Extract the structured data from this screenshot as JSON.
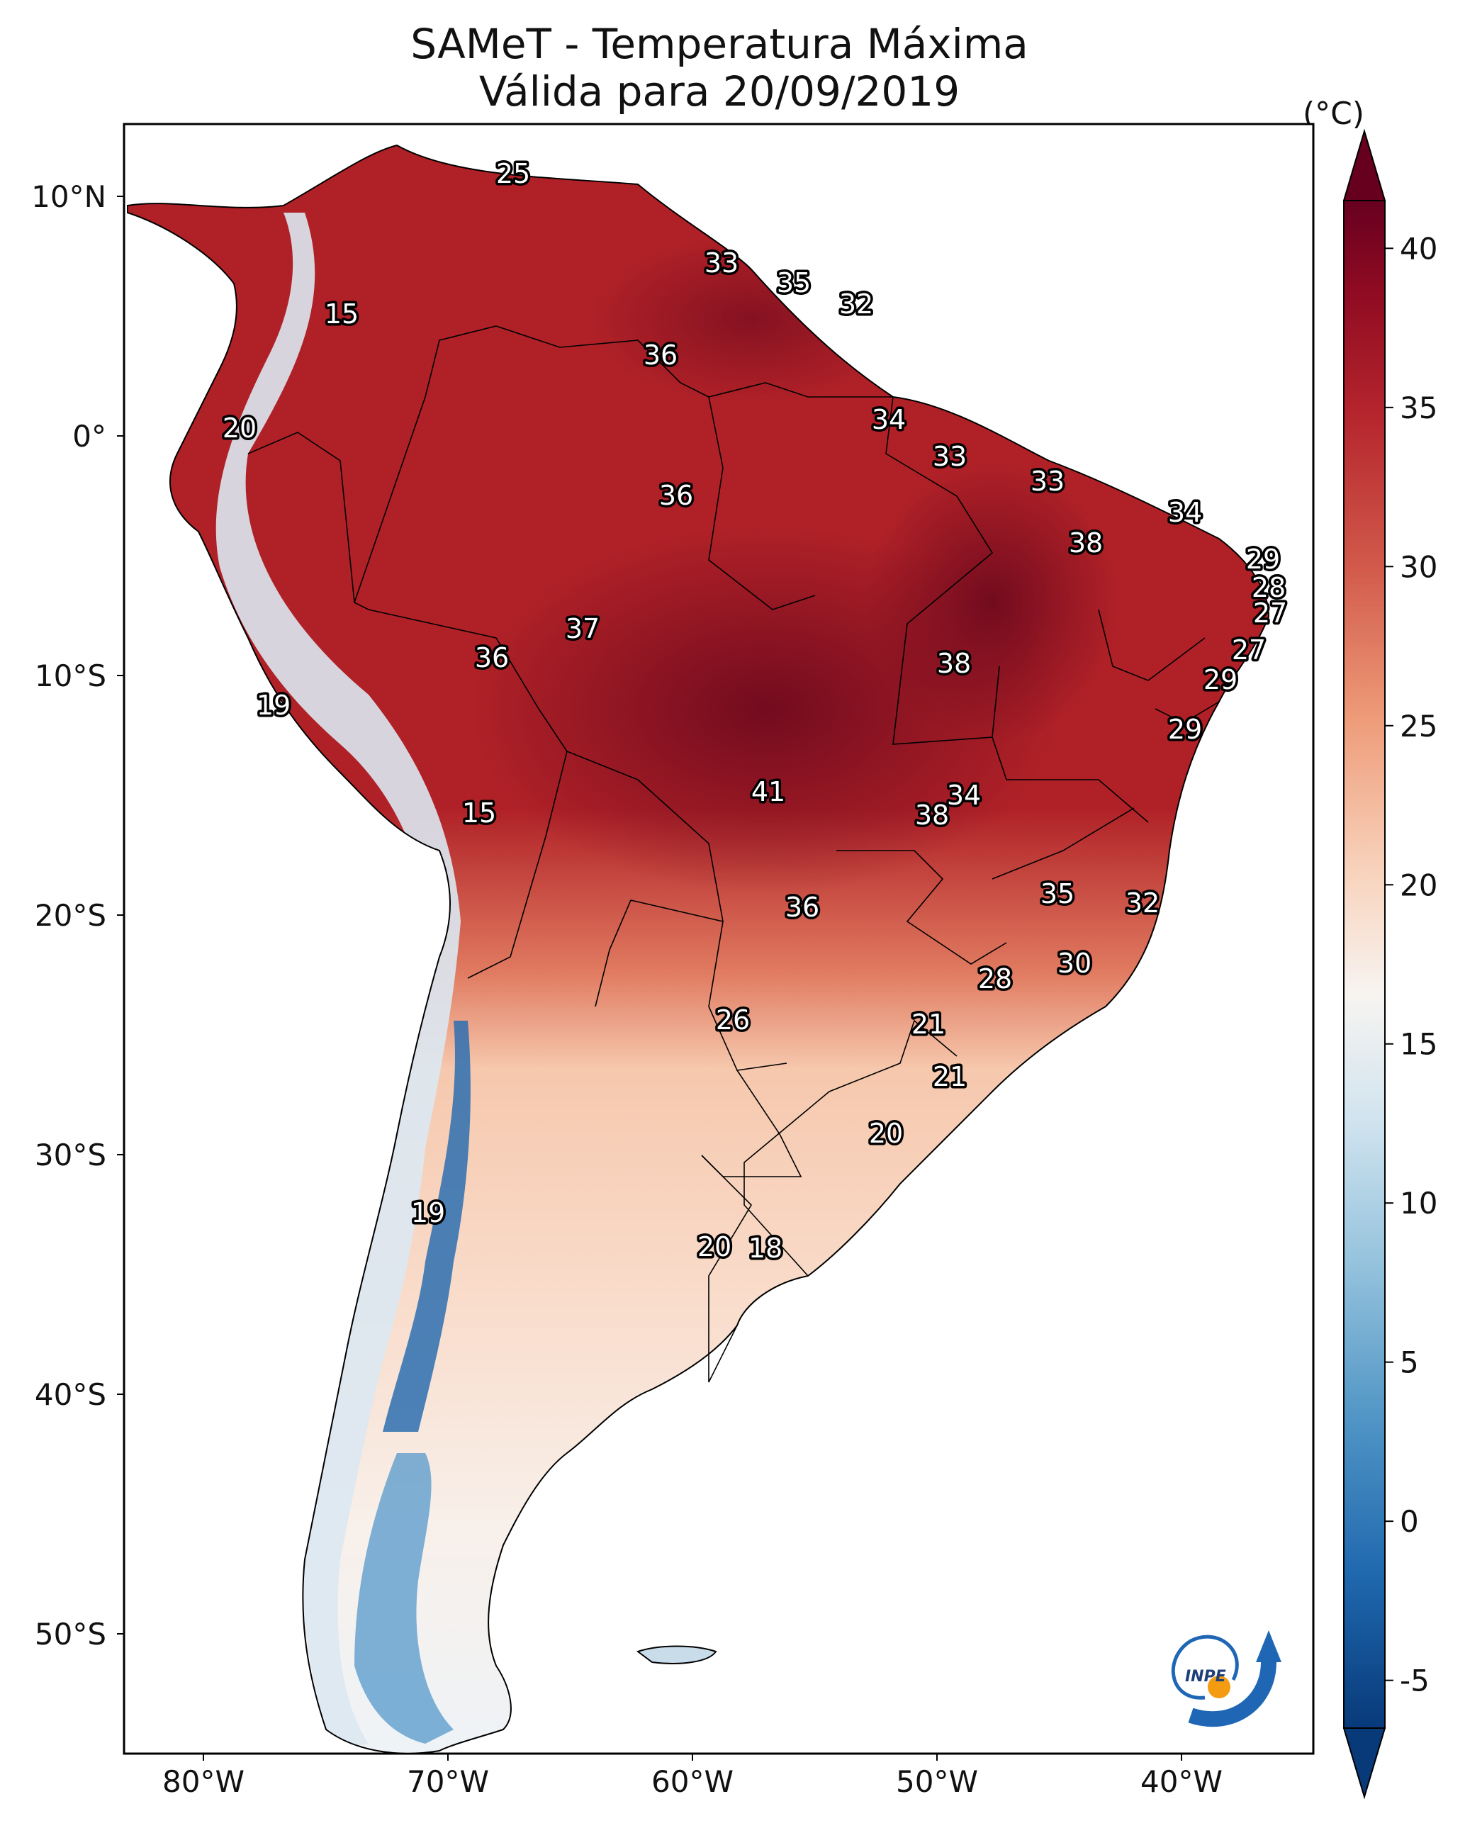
{
  "title_line1": "SAMeT - Temperatura Máxima",
  "title_line2": "Válida para 20/09/2019",
  "colorbar": {
    "unit": "(°C)",
    "ticks": [
      "40",
      "35",
      "30",
      "25",
      "20",
      "15",
      "10",
      "5",
      "0",
      "-5"
    ],
    "min": -5,
    "max": 40,
    "colors": [
      "#083a7a",
      "#1f68ae",
      "#4f94c5",
      "#92c1dc",
      "#d2e4ef",
      "#f7f4f1",
      "#f8d3bd",
      "#ee9c79",
      "#d15a4b",
      "#b5252d",
      "#8f0b22",
      "#67001f"
    ]
  },
  "map": {
    "lat_ticks": [
      "10°N",
      "0°",
      "10°S",
      "20°S",
      "30°S",
      "40°S",
      "50°S"
    ],
    "lon_ticks": [
      "80°W",
      "70°W",
      "60°W",
      "50°W",
      "40°W"
    ],
    "logo_text": "INPE",
    "labels": [
      "25",
      "33",
      "35",
      "32",
      "15",
      "36",
      "20",
      "34",
      "33",
      "36",
      "33",
      "34",
      "38",
      "29",
      "28",
      "27",
      "37",
      "36",
      "38",
      "27",
      "29",
      "19",
      "29",
      "41",
      "34",
      "15",
      "38",
      "35",
      "32",
      "36",
      "30",
      "28",
      "26",
      "21",
      "21",
      "20",
      "19",
      "20",
      "18"
    ]
  },
  "colors": {
    "warm_land": "#b02127",
    "hot_core": "#7d0d1f",
    "cool_south": "#f7efe8",
    "andes": "#3b7bb8"
  }
}
